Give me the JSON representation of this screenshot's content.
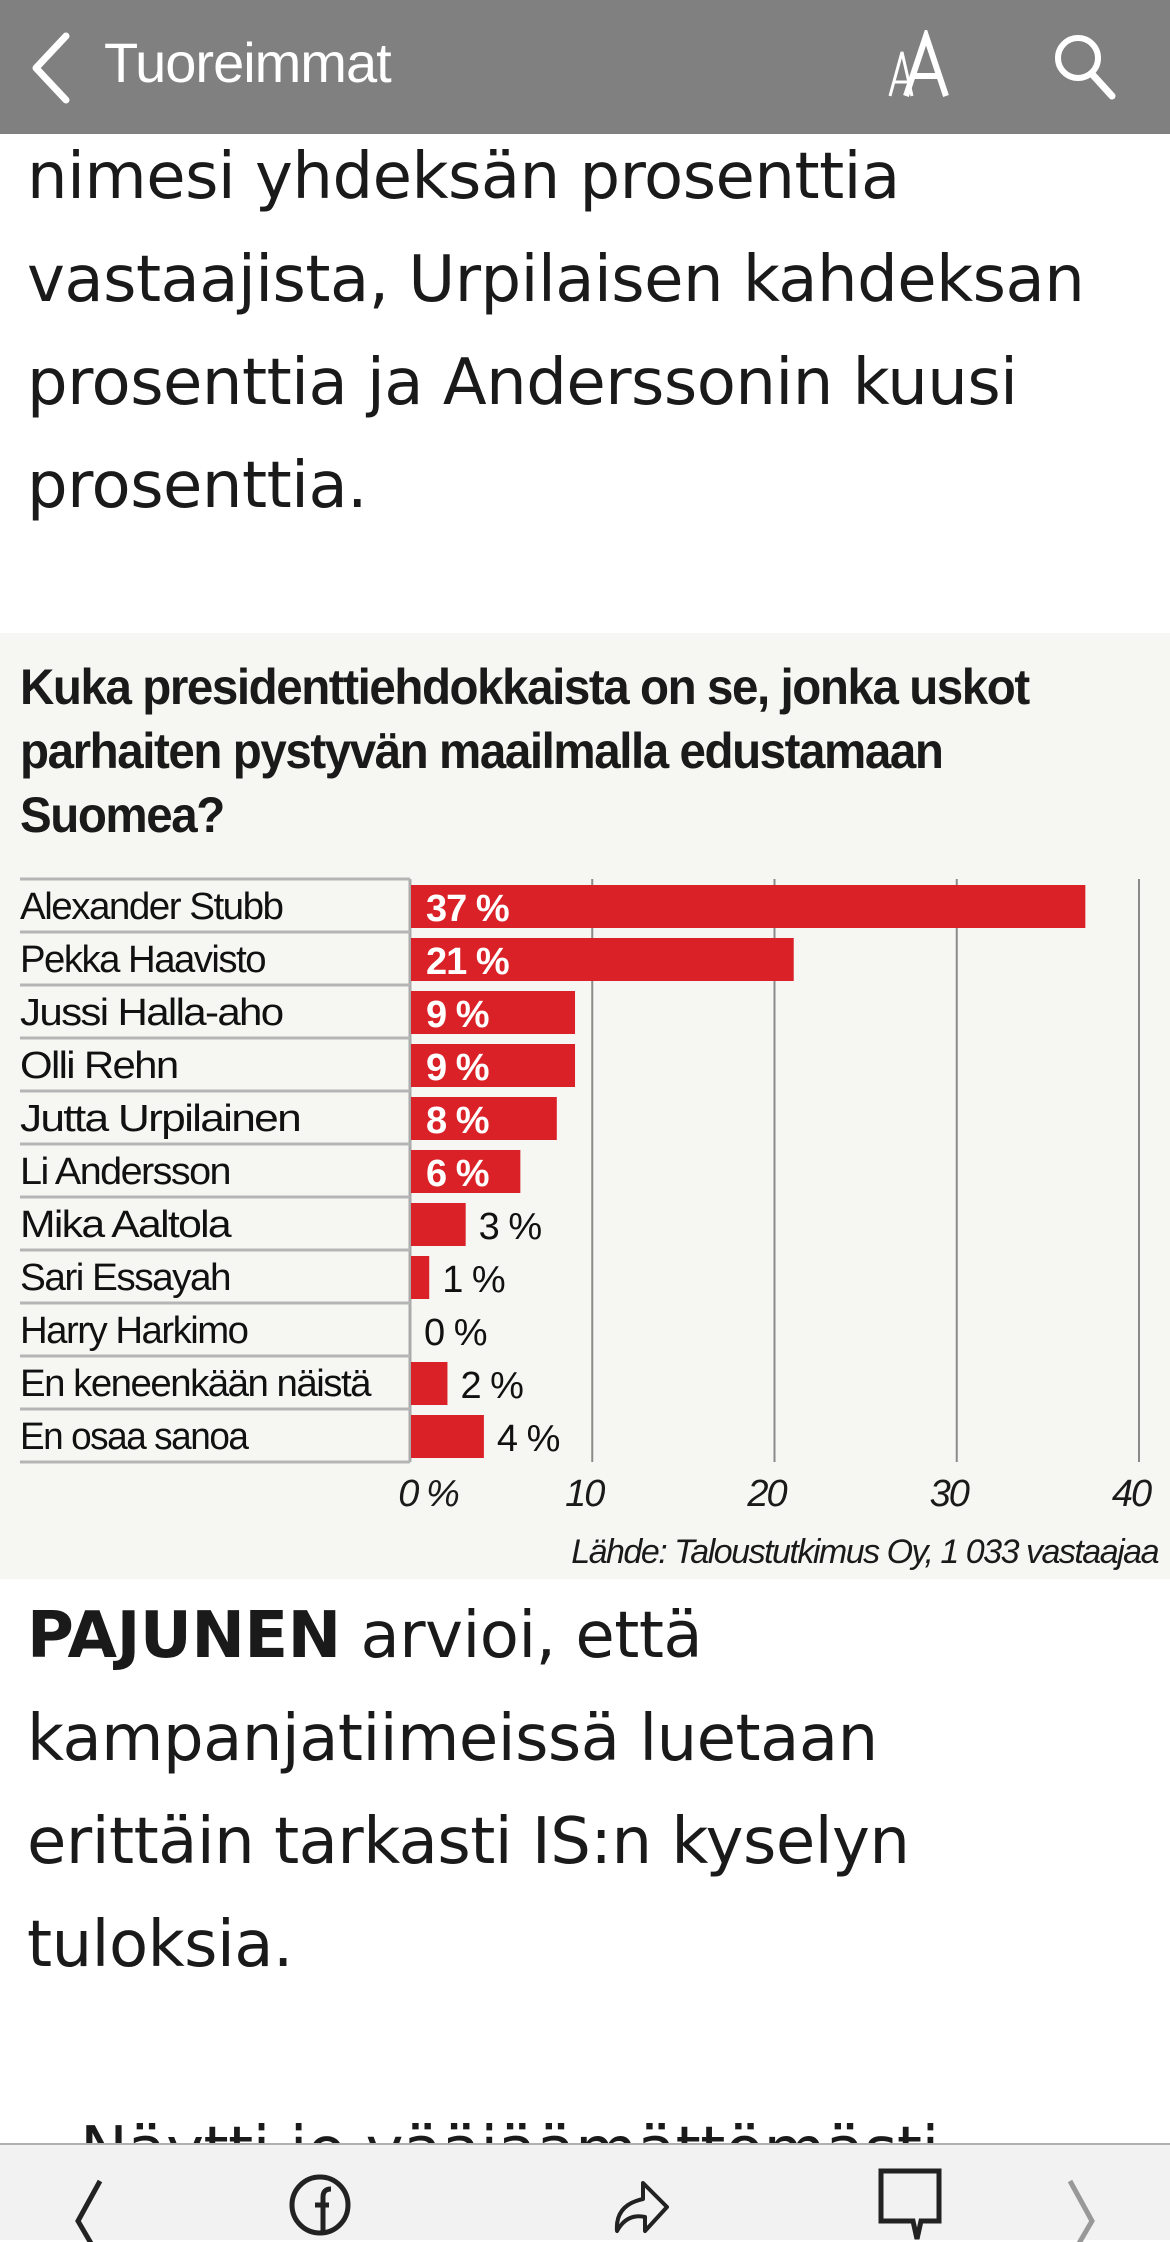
{
  "header": {
    "back_label": "Tuoreimmat",
    "icons": [
      "chevron-left-icon",
      "text-size-icon",
      "search-icon"
    ]
  },
  "article": {
    "para1": "nimesi yhdeksän prosenttia vastaajista, Urpilaisen kahdeksan prosenttia ja Anderssonin kuusi prosenttia.",
    "para2_bold": "PAJUNEN",
    "para2": " arvioi, että kampanjatiimeissä luetaan erittäin tarkasti IS:n kyselyn tuloksia.",
    "para3": "Näytti jo vääjäämättömästi"
  },
  "chart_data": {
    "type": "bar",
    "orientation": "horizontal",
    "title": "Kuka presidenttiehdokkaista on se, jonka uskot parhaiten pystyvän maailmalla edustamaan Suomea?",
    "categories": [
      "Alexander Stubb",
      "Pekka Haavisto",
      "Jussi Halla-aho",
      "Olli Rehn",
      "Jutta Urpilainen",
      "Li Andersson",
      "Mika Aaltola",
      "Sari Essayah",
      "Harry Harkimo",
      "En keneenkään näistä",
      "En osaa sanoa"
    ],
    "values": [
      37,
      21,
      9,
      9,
      8,
      6,
      3,
      1,
      0,
      2,
      4
    ],
    "value_labels": [
      "37 %",
      "21 %",
      "9 %",
      "9 %",
      "8 %",
      "6 %",
      "3 %",
      "1 %",
      "0 %",
      "2 %",
      "4 %"
    ],
    "xlim": [
      0,
      40
    ],
    "xticks": [
      "0 %",
      "10",
      "20",
      "30",
      "40"
    ],
    "grid": true,
    "source": "Lähde: Taloustutkimus Oy, 1 033 vastaajaa",
    "bar_color": "#da2128"
  },
  "bottom_bar": {
    "icons": [
      "previous-icon",
      "facebook-icon",
      "share-icon",
      "comment-icon",
      "next-icon"
    ]
  }
}
